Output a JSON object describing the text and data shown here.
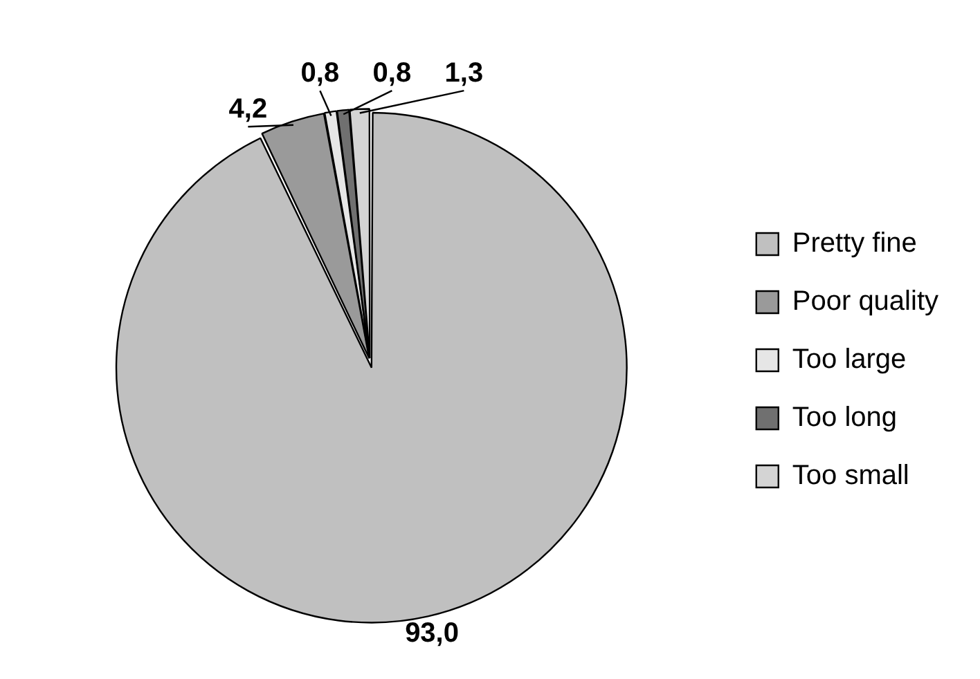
{
  "chart_data": {
    "type": "pie",
    "categories": [
      "Pretty fine",
      "Poor quality",
      "Too large",
      "Too long",
      "Too small"
    ],
    "values": [
      93.0,
      4.2,
      0.8,
      0.8,
      1.3
    ],
    "value_labels": [
      "93,0",
      "4,2",
      "0,8",
      "0,8",
      "1,3"
    ],
    "colors": [
      "#c0c0c0",
      "#9a9a9a",
      "#e6e6e6",
      "#707070",
      "#d4d4d4"
    ],
    "legend": "right"
  }
}
